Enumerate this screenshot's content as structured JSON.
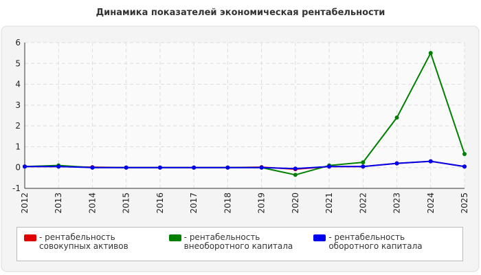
{
  "chart_data": {
    "type": "line",
    "title": "Динамика показателей экономическая рентабельности",
    "categories": [
      "2012",
      "2013",
      "2014",
      "2015",
      "2016",
      "2017",
      "2018",
      "2019",
      "2020",
      "2021",
      "2022",
      "2023",
      "2024",
      "2025"
    ],
    "series": [
      {
        "name": "- рентабельность совокупных активов",
        "color": "#e00000",
        "values": [
          0.05,
          0.05,
          0.02,
          0,
          0,
          0,
          0,
          0.02,
          -0.08,
          0.05,
          0.05,
          0.2,
          0.3,
          0.05
        ]
      },
      {
        "name": "- рентабельность внеоборотного капитала",
        "color": "#008000",
        "values": [
          0.05,
          0.1,
          0,
          0,
          0,
          0,
          0,
          0,
          -0.35,
          0.1,
          0.25,
          2.4,
          5.5,
          0.65
        ]
      },
      {
        "name": "- рентабельность оборотного капитала",
        "color": "#0000ee",
        "values": [
          0.05,
          0.05,
          0,
          0,
          0,
          0,
          0,
          0,
          -0.05,
          0.05,
          0.05,
          0.2,
          0.3,
          0.05
        ]
      }
    ],
    "ylim": [
      -1,
      6
    ],
    "yticks": [
      -1,
      0,
      1,
      2,
      3,
      4,
      5,
      6
    ],
    "grid": true
  }
}
